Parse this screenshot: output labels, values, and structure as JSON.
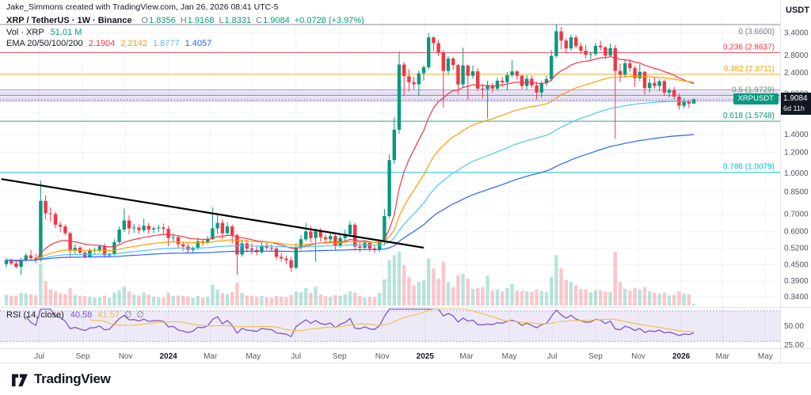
{
  "attribution": "Jake_Simmons created with TradingView.com, Jan 26, 2026 08:41 UTC-5",
  "colors": {
    "up": "#089981",
    "down": "#f23645",
    "text": "#131722",
    "muted": "#787b86"
  },
  "header": {
    "symbol_line": "XRP / TetherUS · 1W · Binance",
    "ohlc": {
      "open_label": "O",
      "open": "1.8356",
      "high_label": "H",
      "high": "1.9168",
      "low_label": "L",
      "low": "1.8331",
      "close_label": "C",
      "close": "1.9084",
      "change": "+0.0728 (+3.97%)"
    },
    "volume_label": "Vol · XRP",
    "volume_value": "51.01 M",
    "ema_label": "EMA 20/50/100/200",
    "ema_values": [
      "2.1904",
      "2.2142",
      "1.8777",
      "1.4057"
    ]
  },
  "rsi_legend": {
    "label": "RSI (14, close)",
    "value": "40.58",
    "ma_value": "41.57",
    "extra": [
      "∅",
      "∅"
    ]
  },
  "price_scale": {
    "currency": "USDT",
    "labels": [
      {
        "text": "3.4000",
        "value": 3.4
      },
      {
        "text": "2.8000",
        "value": 2.8
      },
      {
        "text": "2.4000",
        "value": 2.4
      },
      {
        "text": "2.0000",
        "value": 2.0
      },
      {
        "text": "1.7000",
        "value": 1.7
      },
      {
        "text": "1.4000",
        "value": 1.4
      },
      {
        "text": "1.2000",
        "value": 1.2
      },
      {
        "text": "1.0000",
        "value": 1.0
      },
      {
        "text": "0.8500",
        "value": 0.85
      },
      {
        "text": "0.7000",
        "value": 0.7
      },
      {
        "text": "0.6000",
        "value": 0.6
      },
      {
        "text": "0.5200",
        "value": 0.52
      },
      {
        "text": "0.4500",
        "value": 0.45
      },
      {
        "text": "0.3900",
        "value": 0.39
      },
      {
        "text": "0.3400",
        "value": 0.34
      }
    ],
    "last_price": "1.9084",
    "countdown": "6d 11h",
    "symbol_tag": "XRPUSDT"
  },
  "rsi_scale": [
    {
      "text": "50.00",
      "value": 50
    },
    {
      "text": "25.00",
      "value": 25
    }
  ],
  "time_axis": [
    {
      "label": "Jul",
      "week": 6.71
    },
    {
      "label": "Sep",
      "week": 15.57
    },
    {
      "label": "Nov",
      "week": 24.29
    },
    {
      "label": "2024",
      "week": 33.0,
      "major": true
    },
    {
      "label": "Mar",
      "week": 41.57
    },
    {
      "label": "May",
      "week": 50.29
    },
    {
      "label": "Jul",
      "week": 59.0
    },
    {
      "label": "Sep",
      "week": 67.86
    },
    {
      "label": "Nov",
      "week": 76.57
    },
    {
      "label": "2025",
      "week": 85.29,
      "major": true
    },
    {
      "label": "Mar",
      "week": 93.71
    },
    {
      "label": "May",
      "week": 102.43
    },
    {
      "label": "Jul",
      "week": 111.14
    },
    {
      "label": "Sep",
      "week": 120.0
    },
    {
      "label": "Nov",
      "week": 128.71
    },
    {
      "label": "2026",
      "week": 137.43,
      "major": true
    },
    {
      "label": "Mar",
      "week": 145.86
    },
    {
      "label": "May",
      "week": 154.57
    }
  ],
  "footer": {
    "brand": "TradingView"
  },
  "chart_data": {
    "type": "candlestick",
    "title": "XRP / TetherUS · 1W · Binance",
    "timeframe": "1W",
    "start_date": "2023-05-15",
    "scale": "log",
    "y_range": [
      0.315,
      3.95
    ],
    "last_price": 1.9084,
    "ohlc_current": {
      "o": 1.8356,
      "h": 1.9168,
      "l": 1.8331,
      "c": 1.9084,
      "change_pct": 3.97
    },
    "volume_current_m": 51.01,
    "candles": [
      [
        0.452,
        0.478,
        0.44,
        0.468,
        320
      ],
      [
        0.468,
        0.475,
        0.448,
        0.455,
        290
      ],
      [
        0.455,
        0.465,
        0.436,
        0.442,
        300
      ],
      [
        0.442,
        0.478,
        0.412,
        0.47,
        380
      ],
      [
        0.47,
        0.498,
        0.462,
        0.488,
        350
      ],
      [
        0.488,
        0.512,
        0.47,
        0.476,
        330
      ],
      [
        0.476,
        0.495,
        0.455,
        0.47,
        310
      ],
      [
        0.47,
        0.938,
        0.462,
        0.785,
        1250
      ],
      [
        0.785,
        0.825,
        0.668,
        0.705,
        720
      ],
      [
        0.705,
        0.742,
        0.655,
        0.7,
        480
      ],
      [
        0.7,
        0.715,
        0.618,
        0.638,
        420
      ],
      [
        0.638,
        0.652,
        0.598,
        0.628,
        360
      ],
      [
        0.628,
        0.64,
        0.582,
        0.592,
        340
      ],
      [
        0.592,
        0.6,
        0.482,
        0.508,
        520
      ],
      [
        0.508,
        0.538,
        0.495,
        0.522,
        310
      ],
      [
        0.522,
        0.53,
        0.488,
        0.5,
        290
      ],
      [
        0.5,
        0.512,
        0.475,
        0.482,
        270
      ],
      [
        0.482,
        0.52,
        0.478,
        0.508,
        260
      ],
      [
        0.508,
        0.522,
        0.495,
        0.512,
        240
      ],
      [
        0.512,
        0.535,
        0.5,
        0.528,
        250
      ],
      [
        0.528,
        0.542,
        0.478,
        0.488,
        300
      ],
      [
        0.488,
        0.502,
        0.48,
        0.492,
        230
      ],
      [
        0.492,
        0.562,
        0.488,
        0.548,
        380
      ],
      [
        0.548,
        0.628,
        0.54,
        0.612,
        450
      ],
      [
        0.612,
        0.735,
        0.598,
        0.662,
        560
      ],
      [
        0.662,
        0.692,
        0.588,
        0.618,
        420
      ],
      [
        0.618,
        0.642,
        0.595,
        0.622,
        330
      ],
      [
        0.622,
        0.64,
        0.588,
        0.608,
        300
      ],
      [
        0.608,
        0.672,
        0.596,
        0.632,
        380
      ],
      [
        0.632,
        0.648,
        0.588,
        0.612,
        320
      ],
      [
        0.612,
        0.628,
        0.592,
        0.618,
        260
      ],
      [
        0.618,
        0.638,
        0.598,
        0.622,
        250
      ],
      [
        0.622,
        0.645,
        0.588,
        0.615,
        240
      ],
      [
        0.615,
        0.632,
        0.528,
        0.568,
        380
      ],
      [
        0.568,
        0.592,
        0.548,
        0.572,
        290
      ],
      [
        0.572,
        0.578,
        0.522,
        0.538,
        300
      ],
      [
        0.538,
        0.552,
        0.508,
        0.528,
        280
      ],
      [
        0.528,
        0.542,
        0.498,
        0.512,
        270
      ],
      [
        0.512,
        0.528,
        0.498,
        0.522,
        230
      ],
      [
        0.522,
        0.568,
        0.512,
        0.552,
        280
      ],
      [
        0.552,
        0.562,
        0.532,
        0.548,
        240
      ],
      [
        0.548,
        0.578,
        0.538,
        0.562,
        260
      ],
      [
        0.562,
        0.742,
        0.558,
        0.618,
        620
      ],
      [
        0.618,
        0.702,
        0.588,
        0.648,
        480
      ],
      [
        0.648,
        0.668,
        0.562,
        0.592,
        380
      ],
      [
        0.592,
        0.652,
        0.578,
        0.628,
        340
      ],
      [
        0.628,
        0.638,
        0.542,
        0.582,
        400
      ],
      [
        0.582,
        0.592,
        0.412,
        0.492,
        680
      ],
      [
        0.492,
        0.562,
        0.482,
        0.542,
        380
      ],
      [
        0.542,
        0.558,
        0.502,
        0.518,
        300
      ],
      [
        0.518,
        0.545,
        0.492,
        0.512,
        290
      ],
      [
        0.512,
        0.528,
        0.488,
        0.502,
        260
      ],
      [
        0.502,
        0.548,
        0.495,
        0.532,
        280
      ],
      [
        0.532,
        0.545,
        0.512,
        0.522,
        250
      ],
      [
        0.522,
        0.538,
        0.505,
        0.518,
        230
      ],
      [
        0.518,
        0.525,
        0.472,
        0.482,
        290
      ],
      [
        0.482,
        0.498,
        0.462,
        0.475,
        260
      ],
      [
        0.475,
        0.488,
        0.452,
        0.468,
        250
      ],
      [
        0.468,
        0.482,
        0.422,
        0.438,
        320
      ],
      [
        0.438,
        0.542,
        0.432,
        0.522,
        420
      ],
      [
        0.522,
        0.582,
        0.512,
        0.562,
        400
      ],
      [
        0.562,
        0.648,
        0.552,
        0.602,
        520
      ],
      [
        0.602,
        0.632,
        0.548,
        0.568,
        380
      ],
      [
        0.568,
        0.618,
        0.462,
        0.602,
        560
      ],
      [
        0.602,
        0.618,
        0.552,
        0.572,
        330
      ],
      [
        0.572,
        0.588,
        0.542,
        0.562,
        280
      ],
      [
        0.562,
        0.592,
        0.548,
        0.578,
        260
      ],
      [
        0.578,
        0.588,
        0.512,
        0.532,
        310
      ],
      [
        0.532,
        0.582,
        0.522,
        0.568,
        290
      ],
      [
        0.568,
        0.612,
        0.548,
        0.588,
        340
      ],
      [
        0.588,
        0.658,
        0.572,
        0.638,
        420
      ],
      [
        0.638,
        0.648,
        0.508,
        0.528,
        380
      ],
      [
        0.528,
        0.552,
        0.502,
        0.522,
        290
      ],
      [
        0.522,
        0.558,
        0.512,
        0.545,
        250
      ],
      [
        0.545,
        0.552,
        0.505,
        0.518,
        260
      ],
      [
        0.518,
        0.532,
        0.498,
        0.512,
        250
      ],
      [
        0.512,
        0.562,
        0.502,
        0.552,
        380
      ],
      [
        0.552,
        0.732,
        0.538,
        0.688,
        780
      ],
      [
        0.688,
        1.182,
        0.672,
        1.122,
        1350
      ],
      [
        1.122,
        1.632,
        1.085,
        1.462,
        1500
      ],
      [
        1.462,
        2.902,
        1.412,
        2.582,
        1600
      ],
      [
        2.582,
        2.642,
        1.962,
        2.332,
        1200
      ],
      [
        2.332,
        2.482,
        2.042,
        2.212,
        850
      ],
      [
        2.212,
        2.322,
        2.082,
        2.172,
        600
      ],
      [
        2.172,
        2.452,
        1.962,
        2.392,
        700
      ],
      [
        2.392,
        2.562,
        2.242,
        2.522,
        750
      ],
      [
        2.522,
        3.402,
        2.472,
        3.272,
        1400
      ],
      [
        3.272,
        3.302,
        2.902,
        3.112,
        1100
      ],
      [
        3.112,
        3.202,
        2.782,
        2.872,
        800
      ],
      [
        2.872,
        2.922,
        1.772,
        2.442,
        1300
      ],
      [
        2.442,
        2.782,
        2.352,
        2.722,
        700
      ],
      [
        2.722,
        2.752,
        2.472,
        2.572,
        550
      ],
      [
        2.572,
        2.602,
        1.992,
        2.172,
        900
      ],
      [
        2.172,
        2.992,
        2.112,
        2.562,
        950
      ],
      [
        2.562,
        2.582,
        1.902,
        2.342,
        800
      ],
      [
        2.342,
        2.562,
        2.282,
        2.432,
        500
      ],
      [
        2.432,
        2.502,
        2.052,
        2.092,
        520
      ],
      [
        2.092,
        2.182,
        1.922,
        2.082,
        550
      ],
      [
        2.082,
        2.242,
        1.612,
        2.142,
        900
      ],
      [
        2.142,
        2.192,
        2.022,
        2.092,
        450
      ],
      [
        2.092,
        2.302,
        2.062,
        2.242,
        480
      ],
      [
        2.242,
        2.312,
        2.122,
        2.212,
        420
      ],
      [
        2.212,
        2.422,
        2.062,
        2.352,
        520
      ],
      [
        2.352,
        2.682,
        2.312,
        2.432,
        650
      ],
      [
        2.432,
        2.462,
        2.262,
        2.342,
        450
      ],
      [
        2.342,
        2.362,
        2.082,
        2.142,
        430
      ],
      [
        2.142,
        2.352,
        2.072,
        2.282,
        420
      ],
      [
        2.282,
        2.342,
        2.102,
        2.152,
        400
      ],
      [
        2.152,
        2.222,
        1.902,
        2.022,
        480
      ],
      [
        2.022,
        2.232,
        1.932,
        2.192,
        430
      ],
      [
        2.192,
        2.342,
        2.142,
        2.272,
        400
      ],
      [
        2.272,
        2.922,
        2.232,
        2.782,
        850
      ],
      [
        2.782,
        3.662,
        2.742,
        3.452,
        1500
      ],
      [
        3.452,
        3.592,
        2.952,
        3.182,
        1100
      ],
      [
        3.182,
        3.242,
        2.842,
        2.972,
        750
      ],
      [
        2.972,
        3.352,
        2.912,
        3.272,
        700
      ],
      [
        3.272,
        3.342,
        2.972,
        3.032,
        600
      ],
      [
        3.032,
        3.122,
        2.822,
        2.912,
        500
      ],
      [
        2.912,
        3.062,
        2.722,
        2.812,
        480
      ],
      [
        2.812,
        2.902,
        2.692,
        2.832,
        400
      ],
      [
        2.832,
        3.122,
        2.782,
        3.042,
        450
      ],
      [
        3.042,
        3.182,
        2.922,
        3.002,
        460
      ],
      [
        3.002,
        3.032,
        2.712,
        2.792,
        420
      ],
      [
        2.792,
        3.102,
        2.762,
        2.982,
        400
      ],
      [
        2.982,
        3.062,
        1.352,
        2.442,
        1600
      ],
      [
        2.442,
        2.602,
        2.212,
        2.362,
        700
      ],
      [
        2.362,
        2.682,
        2.302,
        2.612,
        500
      ],
      [
        2.612,
        2.702,
        2.422,
        2.502,
        450
      ],
      [
        2.502,
        2.552,
        2.122,
        2.292,
        520
      ],
      [
        2.292,
        2.592,
        2.232,
        2.422,
        480
      ],
      [
        2.422,
        2.452,
        1.982,
        2.102,
        550
      ],
      [
        2.102,
        2.282,
        2.022,
        2.202,
        420
      ],
      [
        2.202,
        2.322,
        2.092,
        2.142,
        380
      ],
      [
        2.142,
        2.272,
        2.042,
        2.232,
        350
      ],
      [
        2.232,
        2.262,
        1.962,
        2.022,
        380
      ],
      [
        2.022,
        2.112,
        1.942,
        2.062,
        300
      ],
      [
        2.062,
        2.122,
        1.902,
        1.952,
        320
      ],
      [
        1.952,
        2.002,
        1.742,
        1.802,
        420
      ],
      [
        1.802,
        1.922,
        1.762,
        1.872,
        350
      ],
      [
        1.872,
        1.902,
        1.772,
        1.8356,
        330
      ],
      [
        1.8356,
        1.9168,
        1.8331,
        1.9084,
        51
      ]
    ],
    "overlays": {
      "ema_periods": [
        20,
        50,
        100,
        200
      ],
      "ema_colors": [
        "#f23645",
        "#ff9d00",
        "#4fc3f7",
        "#2962ff"
      ],
      "ema_last_values": [
        2.1904,
        2.2142,
        1.8777,
        1.4057
      ],
      "fib_levels": [
        {
          "label": "0 (3.6600)",
          "price": 3.66,
          "color": "#787b86"
        },
        {
          "label": "0.236 (2.8637)",
          "price": 2.8637,
          "color": "#f23645"
        },
        {
          "label": "0.382 (2.3711)",
          "price": 2.3711,
          "color": "#ff9d00"
        },
        {
          "label": "0.5 (1.9729)",
          "price": 1.9729,
          "color": "#4caf50"
        },
        {
          "label": "0.618 (1.5748)",
          "price": 1.5748,
          "color": "#089981"
        },
        {
          "label": "0.786 (1.0079)",
          "price": 1.0079,
          "color": "#00bcd4"
        }
      ],
      "band": {
        "top": 2.07,
        "bottom": 1.88,
        "fill": "rgba(126,87,194,0.16)",
        "edge": "#7e57c2"
      },
      "trendline": {
        "from_week": -1,
        "from_price": 0.95,
        "to_week": 85,
        "to_price": 0.522,
        "color": "#000000"
      }
    },
    "rsi": {
      "period": 14,
      "source": "close",
      "value": 40.58,
      "line_color": "#7e57c2",
      "ma_color": "#edc049",
      "band_fill": "rgba(126,87,194,0.13)",
      "band_edge": "rgba(126,87,194,0.55)",
      "upper_band": 70,
      "lower_band": 30
    }
  }
}
